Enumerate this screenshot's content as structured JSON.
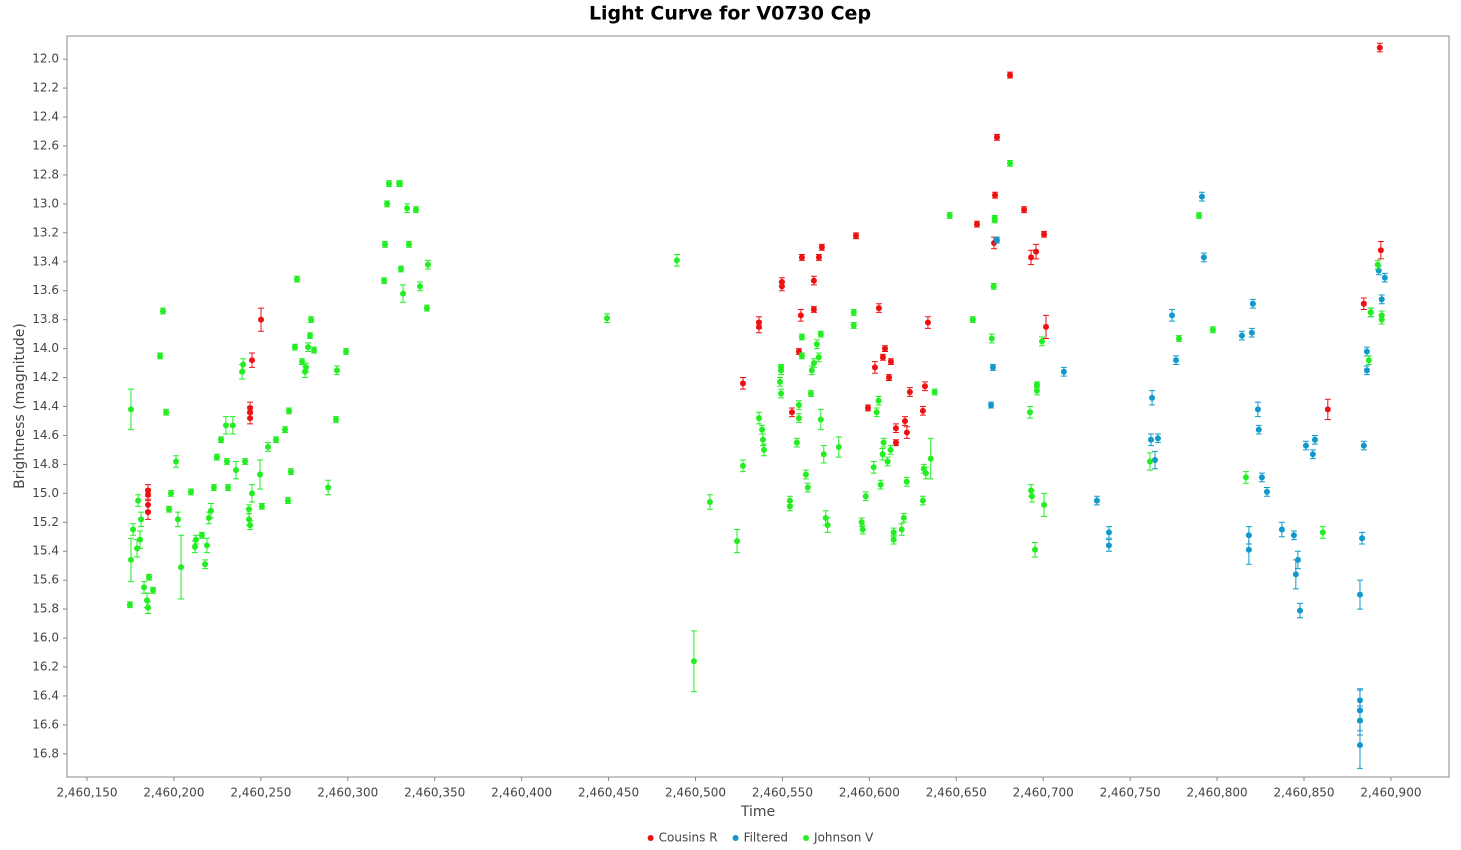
{
  "chart_data": {
    "type": "scatter",
    "title": "Light Curve for V0730 Cep",
    "x_label": "Time",
    "y_label": "Brightness (magnitude)",
    "grid": false,
    "legend": "bottom",
    "xlim": [
      2460138.5,
      2460933.4
    ],
    "ylim": [
      16.96,
      11.84
    ],
    "xticks": [
      {
        "value": 2460150,
        "label": "2,460,150"
      },
      {
        "value": 2460200,
        "label": "2,460,200"
      },
      {
        "value": 2460250,
        "label": "2,460,250"
      },
      {
        "value": 2460300,
        "label": "2,460,300"
      },
      {
        "value": 2460350,
        "label": "2,460,350"
      },
      {
        "value": 2460400,
        "label": "2,460,400"
      },
      {
        "value": 2460450,
        "label": "2,460,450"
      },
      {
        "value": 2460500,
        "label": "2,460,500"
      },
      {
        "value": 2460550,
        "label": "2,460,550"
      },
      {
        "value": 2460600,
        "label": "2,460,600"
      },
      {
        "value": 2460650,
        "label": "2,460,650"
      },
      {
        "value": 2460700,
        "label": "2,460,700"
      },
      {
        "value": 2460750,
        "label": "2,460,750"
      },
      {
        "value": 2460800,
        "label": "2,460,800"
      },
      {
        "value": 2460850,
        "label": "2,460,850"
      },
      {
        "value": 2460900,
        "label": "2,460,900"
      }
    ],
    "yticks": [
      {
        "value": 12,
        "label": "12.0"
      },
      12.2,
      12.4,
      12.6,
      12.8,
      {
        "value": 13,
        "label": "13.0"
      },
      13.2,
      13.4,
      13.6,
      13.8,
      {
        "value": 14,
        "label": "14.0"
      },
      14.2,
      14.4,
      14.6,
      14.8,
      {
        "value": 15,
        "label": "15.0"
      },
      15.2,
      15.4,
      15.6,
      15.8,
      {
        "value": 16,
        "label": "16.0"
      },
      16.2,
      16.4,
      16.6,
      16.8
    ],
    "series": [
      {
        "name": "Cousins R",
        "color": "#ee1111",
        "x": [
          2460185.1,
          2460185.1,
          2460185.1,
          2460185.1,
          2460250.1,
          2460244.9,
          2460243.8,
          2460243.8,
          2460243.8,
          2460527.3,
          2460536.5,
          2460536.5,
          2460549.7,
          2460549.7,
          2460555.5,
          2460559.5,
          2460560.6,
          2460561.2,
          2460568.1,
          2460568.1,
          2460571.0,
          2460572.7,
          2460592.3,
          2460599.2,
          2460603.2,
          2460605.5,
          2460607.8,
          2460609.0,
          2460611.3,
          2460612.4,
          2460615.3,
          2460615.3,
          2460620.5,
          2460621.6,
          2460623.3,
          2460630.8,
          2460632.0,
          2460633.7,
          2460661.9,
          2460671.7,
          2460672.3,
          2460673.4,
          2460680.9,
          2460689.0,
          2460693.0,
          2460695.9,
          2460700.5,
          2460701.6,
          2460863.7,
          2460884.4,
          2460894.2,
          2460893.6
        ],
        "values": [
          15.01,
          15.08,
          14.98,
          15.13,
          13.8,
          14.08,
          14.41,
          14.48,
          14.44,
          14.24,
          13.82,
          13.85,
          13.54,
          13.57,
          14.44,
          14.02,
          13.77,
          13.37,
          13.53,
          13.73,
          13.37,
          13.3,
          13.22,
          14.41,
          14.13,
          13.72,
          14.06,
          14.0,
          14.2,
          14.09,
          14.55,
          14.65,
          14.5,
          14.58,
          14.3,
          14.43,
          14.26,
          13.82,
          13.14,
          13.27,
          12.94,
          12.54,
          12.11,
          13.04,
          13.37,
          13.33,
          13.21,
          13.85,
          14.42,
          13.69,
          13.32,
          11.92
        ],
        "errors": [
          0.04,
          0.04,
          0.04,
          0.05,
          0.08,
          0.05,
          0.04,
          0.04,
          0.04,
          0.04,
          0.04,
          0.04,
          0.03,
          0.03,
          0.03,
          0.02,
          0.04,
          0.02,
          0.03,
          0.02,
          0.02,
          0.02,
          0.02,
          0.02,
          0.04,
          0.03,
          0.02,
          0.02,
          0.02,
          0.02,
          0.03,
          0.02,
          0.03,
          0.04,
          0.03,
          0.03,
          0.03,
          0.04,
          0.02,
          0.04,
          0.02,
          0.02,
          0.02,
          0.02,
          0.05,
          0.05,
          0.02,
          0.08,
          0.07,
          0.04,
          0.06,
          0.03
        ]
      },
      {
        "name": "Filtered",
        "color": "#1199cc",
        "x": [
          2460670.0,
          2460671.1,
          2460673.4,
          2460711.9,
          2460730.9,
          2460737.8,
          2460737.8,
          2460762.0,
          2460762.6,
          2460764.3,
          2460766.0,
          2460774.1,
          2460776.4,
          2460791.3,
          2460792.4,
          2460814.3,
          2460820.0,
          2460820.6,
          2460818.3,
          2460818.3,
          2460823.5,
          2460824.0,
          2460825.8,
          2460828.7,
          2460837.3,
          2460844.2,
          2460845.3,
          2460846.5,
          2460847.7,
          2460851.1,
          2460855.1,
          2460856.3,
          2460882.2,
          2460882.2,
          2460882.2,
          2460882.2,
          2460882.2,
          2460883.4,
          2460884.4,
          2460886.2,
          2460886.2,
          2460888.4,
          2460893.0,
          2460894.7,
          2460896.5
        ],
        "values": [
          14.39,
          14.13,
          13.25,
          14.16,
          15.05,
          15.27,
          15.36,
          14.63,
          14.34,
          14.77,
          14.62,
          13.77,
          14.08,
          12.95,
          13.37,
          13.91,
          13.89,
          13.69,
          15.29,
          15.39,
          14.42,
          14.56,
          14.89,
          14.99,
          15.25,
          15.29,
          15.56,
          15.46,
          15.81,
          14.67,
          14.73,
          14.63,
          16.5,
          16.74,
          16.57,
          16.43,
          15.7,
          15.31,
          14.67,
          14.02,
          14.15,
          13.75,
          13.46,
          13.66,
          13.51
        ],
        "errors": [
          0.02,
          0.02,
          0.02,
          0.03,
          0.03,
          0.04,
          0.04,
          0.04,
          0.05,
          0.06,
          0.03,
          0.04,
          0.03,
          0.03,
          0.03,
          0.03,
          0.03,
          0.03,
          0.06,
          0.1,
          0.05,
          0.03,
          0.03,
          0.03,
          0.05,
          0.03,
          0.1,
          0.06,
          0.05,
          0.03,
          0.03,
          0.03,
          0.14,
          0.16,
          0.1,
          0.08,
          0.1,
          0.04,
          0.03,
          0.03,
          0.03,
          0.03,
          0.03,
          0.03,
          0.03
        ]
      },
      {
        "name": "Johnson V",
        "color": "#22ee22",
        "x": [
          2460175.3,
          2460175.3,
          2460174.7,
          2460176.5,
          2460178.8,
          2460179.4,
          2460180.5,
          2460181.1,
          2460182.8,
          2460184.5,
          2460185.1,
          2460185.7,
          2460188.0,
          2460192.0,
          2460193.7,
          2460195.5,
          2460197.2,
          2460198.3,
          2460201.2,
          2460202.3,
          2460204.1,
          2460209.8,
          2460212.1,
          2460212.7,
          2460216.1,
          2460217.9,
          2460219.0,
          2460220.1,
          2460221.3,
          2460223.0,
          2460224.7,
          2460227.1,
          2460229.9,
          2460231.1,
          2460230.5,
          2460233.9,
          2460235.7,
          2460239.2,
          2460239.8,
          2460240.9,
          2460243.2,
          2460243.2,
          2460243.8,
          2460244.9,
          2460249.5,
          2460250.6,
          2460254.1,
          2460258.7,
          2460263.9,
          2460265.6,
          2460266.2,
          2460267.3,
          2460269.6,
          2460270.8,
          2460273.7,
          2460275.4,
          2460276.0,
          2460277.2,
          2460278.3,
          2460278.9,
          2460280.6,
          2460288.7,
          2460293.2,
          2460293.8,
          2460299.0,
          2460320.9,
          2460321.4,
          2460322.6,
          2460323.7,
          2460329.5,
          2460330.0,
          2460330.6,
          2460331.8,
          2460334.1,
          2460335.2,
          2460339.2,
          2460341.5,
          2460345.5,
          2460346.1,
          2460449.1,
          2460489.3,
          2460499.1,
          2460508.3,
          2460523.9,
          2460527.3,
          2460536.5,
          2460538.3,
          2460538.8,
          2460539.4,
          2460548.6,
          2460549.2,
          2460549.2,
          2460549.2,
          2460554.3,
          2460554.3,
          2460558.3,
          2460559.5,
          2460559.5,
          2460561.2,
          2460561.2,
          2460563.5,
          2460564.6,
          2460566.4,
          2460566.9,
          2460568.1,
          2460569.8,
          2460570.9,
          2460572.1,
          2460572.1,
          2460573.8,
          2460574.9,
          2460576.0,
          2460582.4,
          2460591.0,
          2460591.0,
          2460595.6,
          2460596.2,
          2460597.9,
          2460602.5,
          2460604.2,
          2460605.3,
          2460606.5,
          2460607.6,
          2460608.2,
          2460610.5,
          2460612.2,
          2460614.0,
          2460614.0,
          2460618.6,
          2460619.8,
          2460621.5,
          2460630.8,
          2460631.3,
          2460632.5,
          2460635.3,
          2460637.6,
          2460646.2,
          2460659.5,
          2460670.4,
          2460671.5,
          2460672.1,
          2460672.1,
          2460680.9,
          2460692.4,
          2460693.0,
          2460693.5,
          2460695.3,
          2460696.4,
          2460696.4,
          2460699.3,
          2460700.5,
          2460761.4,
          2460778.1,
          2460789.6,
          2460797.6,
          2460816.6,
          2460860.8,
          2460887.3,
          2460888.4,
          2460892.4,
          2460894.7,
          2460894.7
        ],
        "values": [
          14.42,
          15.46,
          15.77,
          15.25,
          15.38,
          15.05,
          15.32,
          15.18,
          15.65,
          15.74,
          15.79,
          15.58,
          15.67,
          14.05,
          13.74,
          14.44,
          15.11,
          15.0,
          14.78,
          15.18,
          15.51,
          14.99,
          15.37,
          15.32,
          15.29,
          15.49,
          15.36,
          15.17,
          15.12,
          14.96,
          14.75,
          14.63,
          14.53,
          14.96,
          14.78,
          14.53,
          14.84,
          14.16,
          14.11,
          14.78,
          15.18,
          15.11,
          15.22,
          15.0,
          14.87,
          15.09,
          14.68,
          14.63,
          14.56,
          15.05,
          14.43,
          14.85,
          13.99,
          13.52,
          14.09,
          14.16,
          14.13,
          13.99,
          13.91,
          13.8,
          14.01,
          14.96,
          14.49,
          14.15,
          14.02,
          13.53,
          13.28,
          13.0,
          12.86,
          12.86,
          12.86,
          13.45,
          13.62,
          13.03,
          13.28,
          13.04,
          13.57,
          13.72,
          13.42,
          13.79,
          13.39,
          16.16,
          15.06,
          15.33,
          14.81,
          14.48,
          14.56,
          14.63,
          14.7,
          14.23,
          14.15,
          14.31,
          14.13,
          15.05,
          15.09,
          14.65,
          14.39,
          14.48,
          14.05,
          13.92,
          14.87,
          14.96,
          14.31,
          14.15,
          14.1,
          13.97,
          14.06,
          13.9,
          14.49,
          14.73,
          15.17,
          15.22,
          14.68,
          13.75,
          13.84,
          15.2,
          15.25,
          15.02,
          14.82,
          14.44,
          14.36,
          14.94,
          14.73,
          14.65,
          14.78,
          14.7,
          15.27,
          15.32,
          15.25,
          15.17,
          14.92,
          15.05,
          14.83,
          14.86,
          14.76,
          14.3,
          13.08,
          13.8,
          13.93,
          13.57,
          13.11,
          13.1,
          12.72,
          14.44,
          14.98,
          15.02,
          15.39,
          14.29,
          14.25,
          13.95,
          15.08,
          14.78,
          13.93,
          13.08,
          13.87,
          14.89,
          15.27,
          14.08,
          13.75,
          13.42,
          13.8,
          13.77
        ],
        "errors": [
          0.14,
          0.15,
          0.02,
          0.04,
          0.06,
          0.04,
          0.06,
          0.05,
          0.04,
          0.05,
          0.04,
          0.02,
          0.02,
          0.02,
          0.02,
          0.02,
          0.02,
          0.02,
          0.04,
          0.05,
          0.22,
          0.02,
          0.04,
          0.03,
          0.02,
          0.03,
          0.05,
          0.04,
          0.05,
          0.02,
          0.02,
          0.02,
          0.06,
          0.02,
          0.02,
          0.06,
          0.06,
          0.05,
          0.04,
          0.02,
          0.04,
          0.03,
          0.03,
          0.06,
          0.1,
          0.02,
          0.03,
          0.02,
          0.02,
          0.02,
          0.02,
          0.02,
          0.02,
          0.02,
          0.02,
          0.04,
          0.03,
          0.03,
          0.02,
          0.02,
          0.02,
          0.05,
          0.02,
          0.03,
          0.02,
          0.02,
          0.02,
          0.02,
          0.02,
          0.02,
          0.02,
          0.02,
          0.06,
          0.03,
          0.02,
          0.02,
          0.03,
          0.02,
          0.03,
          0.03,
          0.04,
          0.21,
          0.05,
          0.08,
          0.04,
          0.04,
          0.03,
          0.04,
          0.04,
          0.03,
          0.03,
          0.03,
          0.02,
          0.03,
          0.03,
          0.03,
          0.03,
          0.03,
          0.02,
          0.02,
          0.03,
          0.03,
          0.02,
          0.03,
          0.03,
          0.03,
          0.03,
          0.02,
          0.07,
          0.06,
          0.05,
          0.05,
          0.07,
          0.02,
          0.02,
          0.03,
          0.03,
          0.03,
          0.04,
          0.03,
          0.03,
          0.03,
          0.04,
          0.03,
          0.03,
          0.03,
          0.03,
          0.03,
          0.04,
          0.03,
          0.03,
          0.03,
          0.03,
          0.04,
          0.14,
          0.02,
          0.02,
          0.02,
          0.03,
          0.02,
          0.02,
          0.02,
          0.02,
          0.04,
          0.04,
          0.04,
          0.05,
          0.03,
          0.02,
          0.03,
          0.08,
          0.06,
          0.02,
          0.02,
          0.02,
          0.04,
          0.04,
          0.03,
          0.03,
          0.03,
          0.03,
          0.03
        ]
      }
    ]
  }
}
